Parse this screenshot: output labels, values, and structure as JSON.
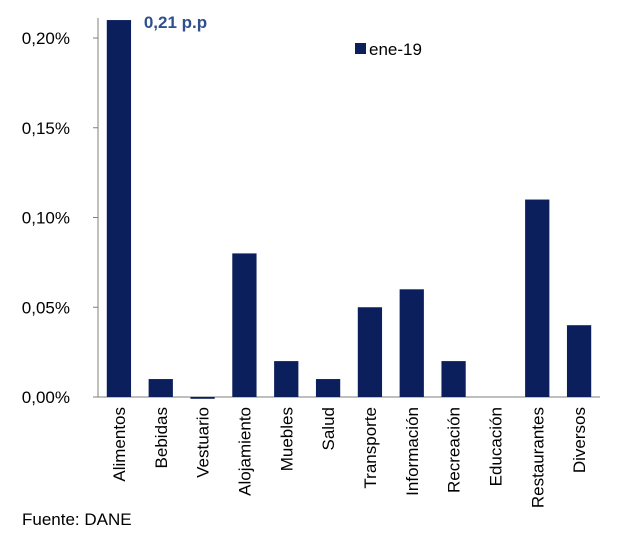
{
  "chart_data": {
    "type": "bar",
    "categories": [
      "Alimentos",
      "Bebidas",
      "Vestuario",
      "Alojamiento",
      "Muebles",
      "Salud",
      "Transporte",
      "Información",
      "Recreación",
      "Educación",
      "Restaurantes",
      "Diversos"
    ],
    "series": [
      {
        "name": "ene-19",
        "values": [
          0.21,
          0.01,
          -0.001,
          0.08,
          0.02,
          0.01,
          0.05,
          0.06,
          0.02,
          0.0,
          0.11,
          0.04
        ]
      }
    ],
    "ylim": [
      0,
      0.2
    ],
    "yticks": [
      "0,00%",
      "0,05%",
      "0,10%",
      "0,15%",
      "0,20%"
    ],
    "ytick_values": [
      0,
      0.05,
      0.1,
      0.15,
      0.2
    ],
    "annotation": "0,21 p.p",
    "legend_position": "top-right",
    "grid": false,
    "bar_color": "#0a1f5c",
    "annotation_color": "#2f4f8f"
  },
  "source": "Fuente: DANE"
}
